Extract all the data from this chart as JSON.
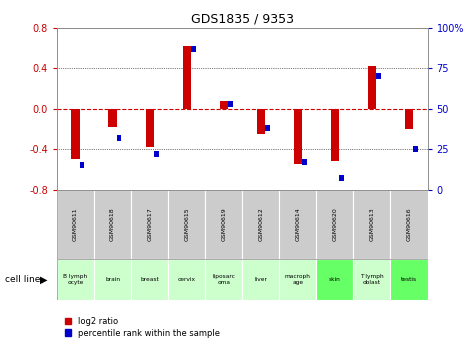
{
  "title": "GDS1835 / 9353",
  "samples": [
    "GSM90611",
    "GSM90618",
    "GSM90617",
    "GSM90615",
    "GSM90619",
    "GSM90612",
    "GSM90614",
    "GSM90620",
    "GSM90613",
    "GSM90616"
  ],
  "cell_lines": [
    "B lymph\nocyte",
    "brain",
    "breast",
    "cervix",
    "liposarc\noma",
    "liver",
    "macroph\nage",
    "skin",
    "T lymph\noblast",
    "testis"
  ],
  "cell_bg_colors": [
    "#ccffcc",
    "#ccffcc",
    "#ccffcc",
    "#ccffcc",
    "#ccffcc",
    "#ccffcc",
    "#ccffcc",
    "#66ff66",
    "#ccffcc",
    "#66ff66"
  ],
  "log2_ratio": [
    -0.5,
    -0.18,
    -0.38,
    0.62,
    0.08,
    -0.25,
    -0.55,
    -0.52,
    0.42,
    -0.2
  ],
  "pct_rank": [
    15,
    32,
    22,
    87,
    53,
    38,
    17,
    7,
    70,
    25
  ],
  "ylim_left": [
    -0.8,
    0.8
  ],
  "ylim_right": [
    0,
    100
  ],
  "yticks_left": [
    -0.8,
    -0.4,
    0.0,
    0.4,
    0.8
  ],
  "yticks_right": [
    0,
    25,
    50,
    75,
    100
  ],
  "bar_color_red": "#cc0000",
  "bar_color_blue": "#0000cc",
  "grid_color": "#000000",
  "zero_line_color": "#cc0000",
  "sample_bg_color": "#cccccc",
  "legend_red_label": "log2 ratio",
  "legend_blue_label": "percentile rank within the sample",
  "cell_line_label": "cell line"
}
